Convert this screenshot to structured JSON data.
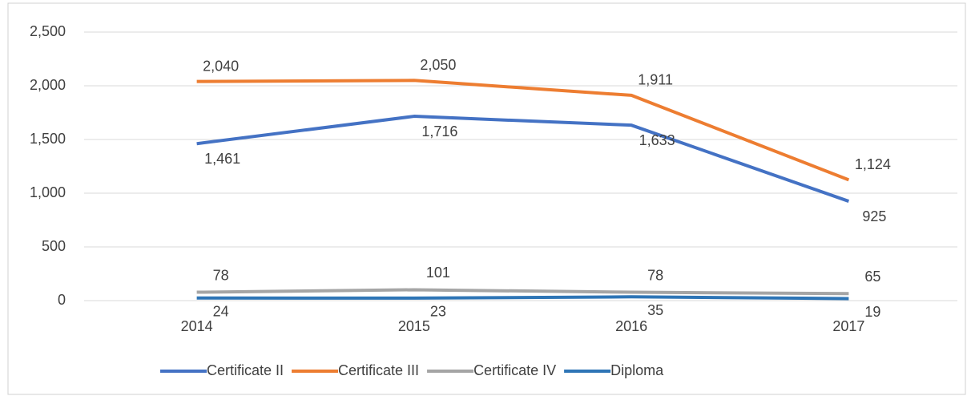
{
  "chart_data": {
    "type": "line",
    "categories": [
      "2014",
      "2015",
      "2016",
      "2017"
    ],
    "series": [
      {
        "name": "Certificate II",
        "color": "#4472c4",
        "values": [
          1461,
          1716,
          1633,
          925
        ],
        "value_labels": [
          "1,461",
          "1,716",
          "1,633",
          "925"
        ]
      },
      {
        "name": "Certificate III",
        "color": "#ed7d31",
        "values": [
          2040,
          2050,
          1911,
          1124
        ],
        "value_labels": [
          "2,040",
          "2,050",
          "1,911",
          "1,124"
        ]
      },
      {
        "name": "Certificate IV",
        "color": "#a5a5a5",
        "values": [
          78,
          101,
          78,
          65
        ]
      },
      {
        "name": "Diploma",
        "color": "#2e75b6",
        "values": [
          24,
          23,
          35,
          19
        ]
      }
    ],
    "ylim": [
      0,
      2500
    ],
    "yticks": [
      0,
      {
        "value": 500,
        "label": "500"
      },
      {
        "value": 1000,
        "label": "1,000"
      },
      {
        "value": 1500,
        "label": "1,500"
      },
      {
        "value": 2000,
        "label": "2,000"
      },
      {
        "value": 2500,
        "label": "2,500"
      }
    ],
    "grid": true,
    "legend": "bottom"
  }
}
